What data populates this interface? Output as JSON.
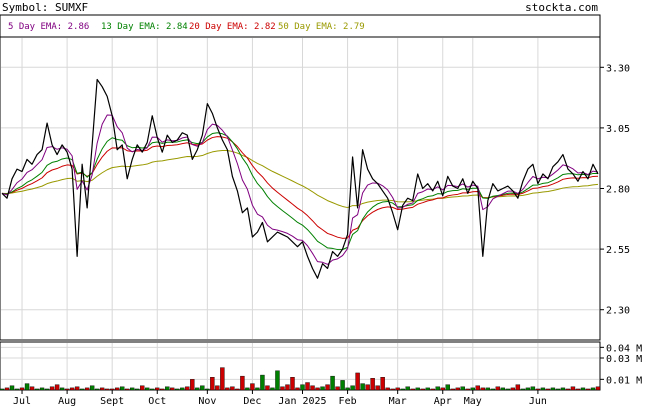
{
  "header": {
    "symbol_label": "Symbol: SUMXF",
    "site": "stockta.com"
  },
  "legend": [
    {
      "label": "5 Day EMA: 2.86",
      "color": "#800080"
    },
    {
      "label": "13 Day EMA: 2.84",
      "color": "#008000"
    },
    {
      "label": "20 Day EMA: 2.82",
      "color": "#cc0000"
    },
    {
      "label": "50 Day EMA: 2.79",
      "color": "#999900"
    }
  ],
  "chart_data": {
    "type": "line",
    "title": "Symbol: SUMXF",
    "y_ticks": [
      "3.30",
      "3.05",
      "2.80",
      "2.55",
      "2.30"
    ],
    "y_tick_values": [
      3.3,
      3.05,
      2.8,
      2.55,
      2.3
    ],
    "ylim": [
      2.175,
      3.425
    ],
    "x_ticks": [
      "Jul",
      "Aug",
      "Sept",
      "Oct",
      "Nov",
      "Dec",
      "Jan 2025",
      "Feb",
      "Mar",
      "Apr",
      "May",
      "Jun"
    ],
    "x_tick_index": [
      4,
      13,
      22,
      31,
      41,
      50,
      60,
      69,
      79,
      88,
      94,
      107
    ],
    "n_days": 120,
    "grid": true,
    "price": [
      2.78,
      2.76,
      2.84,
      2.88,
      2.87,
      2.92,
      2.9,
      2.94,
      2.96,
      3.07,
      2.98,
      2.94,
      2.98,
      2.95,
      2.88,
      2.52,
      2.9,
      2.72,
      2.98,
      3.25,
      3.22,
      3.18,
      3.1,
      2.96,
      2.98,
      2.84,
      2.92,
      2.98,
      2.95,
      2.99,
      3.1,
      3.01,
      2.95,
      3.02,
      2.99,
      3.0,
      3.03,
      3.02,
      2.92,
      2.96,
      3.02,
      3.15,
      3.11,
      3.05,
      3.0,
      2.96,
      2.85,
      2.79,
      2.7,
      2.72,
      2.6,
      2.62,
      2.66,
      2.58,
      2.6,
      2.62,
      2.61,
      2.6,
      2.58,
      2.56,
      2.58,
      2.52,
      2.47,
      2.43,
      2.49,
      2.47,
      2.54,
      2.52,
      2.55,
      2.61,
      2.93,
      2.72,
      2.96,
      2.88,
      2.84,
      2.82,
      2.79,
      2.76,
      2.7,
      2.63,
      2.73,
      2.76,
      2.75,
      2.86,
      2.8,
      2.82,
      2.79,
      2.83,
      2.77,
      2.85,
      2.81,
      2.8,
      2.84,
      2.78,
      2.83,
      2.8,
      2.52,
      2.75,
      2.82,
      2.79,
      2.8,
      2.81,
      2.79,
      2.76,
      2.83,
      2.88,
      2.9,
      2.82,
      2.86,
      2.84,
      2.89,
      2.91,
      2.94,
      2.88,
      2.86,
      2.83,
      2.87,
      2.84,
      2.9,
      2.86
    ],
    "volume": [
      0.001,
      0.002,
      0.004,
      0.001,
      0.002,
      0.006,
      0.003,
      0.001,
      0.002,
      0.001,
      0.003,
      0.005,
      0.002,
      0.001,
      0.002,
      0.003,
      0.001,
      0.002,
      0.004,
      0.001,
      0.002,
      0.001,
      0.001,
      0.002,
      0.003,
      0.001,
      0.002,
      0.001,
      0.004,
      0.002,
      0.001,
      0.002,
      0.001,
      0.003,
      0.002,
      0.001,
      0.002,
      0.003,
      0.01,
      0.002,
      0.004,
      0.001,
      0.012,
      0.004,
      0.021,
      0.002,
      0.003,
      0.001,
      0.013,
      0.002,
      0.006,
      0.002,
      0.014,
      0.004,
      0.002,
      0.018,
      0.003,
      0.005,
      0.012,
      0.002,
      0.005,
      0.007,
      0.004,
      0.002,
      0.003,
      0.005,
      0.013,
      0.003,
      0.009,
      0.002,
      0.004,
      0.016,
      0.006,
      0.005,
      0.011,
      0.004,
      0.012,
      0.002,
      0.001,
      0.002,
      0.001,
      0.003,
      0.001,
      0.002,
      0.001,
      0.002,
      0.001,
      0.003,
      0.002,
      0.005,
      0.001,
      0.002,
      0.003,
      0.001,
      0.002,
      0.004,
      0.002,
      0.002,
      0.001,
      0.003,
      0.002,
      0.001,
      0.002,
      0.005,
      0.001,
      0.002,
      0.003,
      0.001,
      0.002,
      0.001,
      0.002,
      0.001,
      0.002,
      0.001,
      0.003,
      0.001,
      0.002,
      0.001,
      0.002,
      0.003
    ],
    "volume_ticks": [
      "0.04 M",
      "0.03 M",
      "0.01 M"
    ],
    "volume_tick_values": [
      0.04,
      0.03,
      0.01
    ],
    "volume_max": 0.045,
    "ema_periods": [
      5,
      13,
      20,
      50
    ],
    "colors": {
      "price": "#000000",
      "ema5": "#800080",
      "ema13": "#008000",
      "ema20": "#cc0000",
      "ema50": "#999900",
      "vol_up": "#008000",
      "vol_down": "#cc0000",
      "grid": "#d8d8d8",
      "frame": "#000000"
    }
  }
}
